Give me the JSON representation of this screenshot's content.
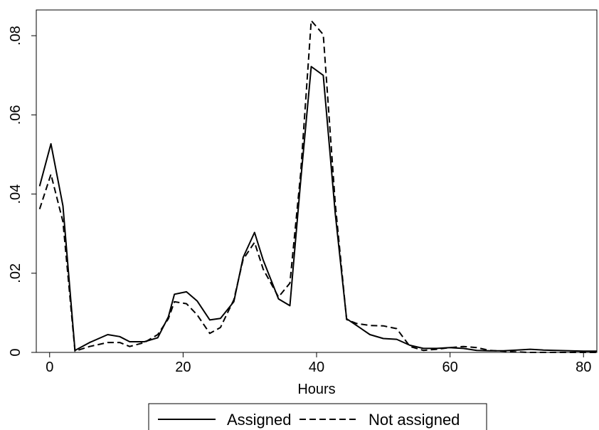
{
  "chart_data": {
    "type": "line",
    "title": "",
    "xlabel": "Hours",
    "ylabel": "",
    "xlim": [
      -2,
      82
    ],
    "ylim": [
      0,
      0.0865
    ],
    "grid": false,
    "x_ticks": [
      0,
      20,
      40,
      60,
      80
    ],
    "x_tick_labels": [
      "0",
      "20",
      "40",
      "60",
      "80"
    ],
    "y_ticks": [
      0,
      0.02,
      0.04,
      0.06,
      0.08
    ],
    "y_tick_labels": [
      "0",
      ".02",
      ".04",
      ".06",
      ".08"
    ],
    "legend_position": "bottom",
    "series": [
      {
        "name": "Assigned",
        "style": "solid",
        "color": "#000000",
        "x": [
          -1.5,
          0.2,
          2,
          3.8,
          6,
          8.7,
          10.5,
          12,
          14.2,
          16.2,
          17.8,
          18.7,
          20.5,
          22.1,
          24,
          25.6,
          27.6,
          29,
          30.7,
          32,
          34.3,
          36,
          37.6,
          39.2,
          41,
          42.8,
          44.5,
          46,
          48,
          50,
          52,
          54,
          56,
          58,
          60,
          62,
          64,
          66,
          68,
          70,
          72,
          74,
          76,
          78,
          80,
          82
        ],
        "y": [
          0.042,
          0.0527,
          0.037,
          0.0005,
          0.0025,
          0.0045,
          0.004,
          0.0027,
          0.0027,
          0.0037,
          0.009,
          0.0147,
          0.0153,
          0.013,
          0.0082,
          0.0086,
          0.0128,
          0.024,
          0.0303,
          0.0233,
          0.0135,
          0.0118,
          0.043,
          0.0722,
          0.07,
          0.035,
          0.0085,
          0.0068,
          0.0045,
          0.0035,
          0.0033,
          0.0018,
          0.001,
          0.001,
          0.0012,
          0.001,
          0.0005,
          0.0004,
          0.0004,
          0.0006,
          0.0008,
          0.0006,
          0.0005,
          0.0004,
          0.0003,
          0.0003
        ]
      },
      {
        "name": "Not assigned",
        "style": "dashed",
        "color": "#000000",
        "x": [
          -1.5,
          0.2,
          2,
          3.8,
          6,
          8.7,
          10.5,
          12,
          14.2,
          16.2,
          17.8,
          18.7,
          20.5,
          22.1,
          24,
          25.6,
          27.6,
          29,
          30.7,
          32,
          34.3,
          36,
          37.6,
          39.2,
          41,
          42.8,
          44.5,
          46,
          48,
          50,
          52,
          54,
          56,
          58,
          60,
          62,
          64,
          66,
          68,
          70,
          72,
          74,
          76,
          78,
          80,
          82
        ],
        "y": [
          0.0362,
          0.045,
          0.033,
          0.0003,
          0.0015,
          0.0025,
          0.0025,
          0.0015,
          0.0025,
          0.0045,
          0.0085,
          0.0128,
          0.0123,
          0.0095,
          0.0048,
          0.0063,
          0.0133,
          0.0235,
          0.0278,
          0.021,
          0.014,
          0.0175,
          0.045,
          0.0838,
          0.0803,
          0.0375,
          0.0083,
          0.0073,
          0.0068,
          0.0067,
          0.006,
          0.0015,
          0.0005,
          0.0008,
          0.0012,
          0.0015,
          0.0012,
          0.0005,
          0.0003,
          0.0001,
          0.0,
          0.0,
          0.0,
          0.0,
          0.0,
          0.0
        ]
      }
    ]
  }
}
